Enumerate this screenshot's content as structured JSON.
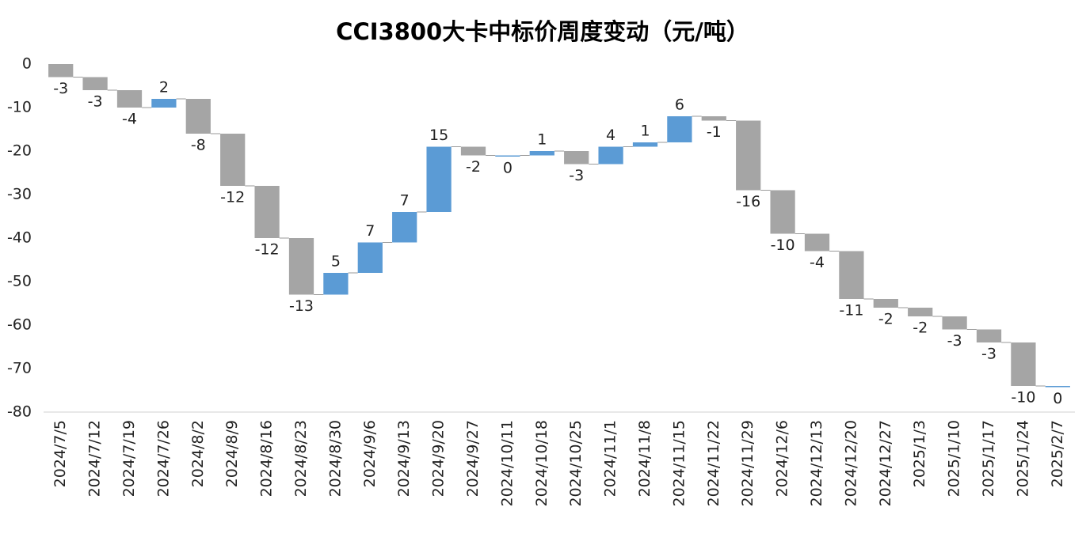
{
  "chart_data": {
    "type": "waterfall",
    "title": "CCI3800大卡中标价周度变动（元/吨）",
    "categories": [
      "2024/7/5",
      "2024/7/12",
      "2024/7/19",
      "2024/7/26",
      "2024/8/2",
      "2024/8/9",
      "2024/8/16",
      "2024/8/23",
      "2024/8/30",
      "2024/9/6",
      "2024/9/13",
      "2024/9/20",
      "2024/9/27",
      "2024/10/11",
      "2024/10/18",
      "2024/10/25",
      "2024/11/1",
      "2024/11/8",
      "2024/11/15",
      "2024/11/22",
      "2024/11/29",
      "2024/12/6",
      "2024/12/13",
      "2024/12/20",
      "2024/12/27",
      "2025/1/3",
      "2025/1/10",
      "2025/1/17",
      "2025/1/24",
      "2025/2/7"
    ],
    "values": [
      -3,
      -3,
      -4,
      2,
      -8,
      -12,
      -12,
      -13,
      5,
      7,
      7,
      15,
      -2,
      0,
      1,
      -3,
      4,
      1,
      6,
      -1,
      -16,
      -10,
      -4,
      -11,
      -2,
      -2,
      -3,
      -3,
      -10,
      0
    ],
    "increase_color": "#5b9bd5",
    "decrease_color": "#a5a5a5",
    "ylim": [
      -80,
      0
    ],
    "yticks": [
      0,
      -10,
      -20,
      -30,
      -40,
      -50,
      -60,
      -70,
      -80
    ],
    "grid": false
  }
}
